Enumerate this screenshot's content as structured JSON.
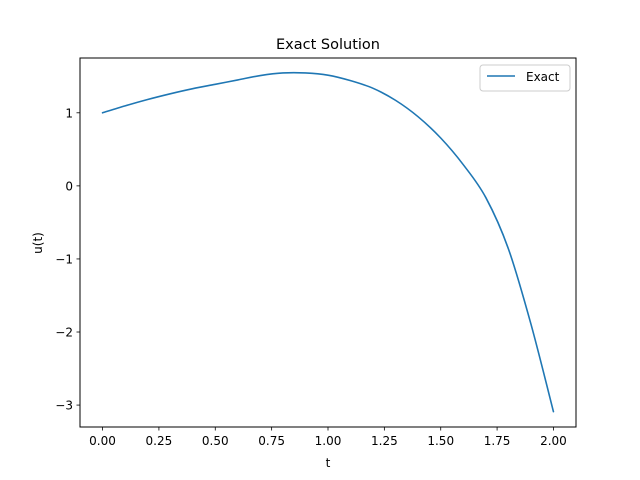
{
  "chart_data": {
    "type": "line",
    "title": "Exact Solution",
    "xlabel": "t",
    "ylabel": "u(t)",
    "xlim": [
      -0.1,
      2.1
    ],
    "ylim": [
      -3.3,
      1.75
    ],
    "xticks": [
      0,
      0.25,
      0.5,
      0.75,
      1.0,
      1.25,
      1.5,
      1.75,
      2.0
    ],
    "xtick_labels": [
      "0.00",
      "0.25",
      "0.50",
      "0.75",
      "1.00",
      "1.25",
      "1.50",
      "1.75",
      "2.00"
    ],
    "yticks": [
      -3,
      -2,
      -1,
      0,
      1
    ],
    "ytick_labels": [
      "−3",
      "−2",
      "−1",
      "0",
      "1"
    ],
    "grid": false,
    "legend_position": "top-right",
    "series": [
      {
        "name": "Exact",
        "color": "#1f77b4",
        "x": [
          0.0,
          0.1,
          0.2,
          0.3,
          0.4,
          0.5,
          0.6,
          0.7,
          0.8,
          0.9,
          1.0,
          1.1,
          1.2,
          1.3,
          1.4,
          1.5,
          1.6,
          1.7,
          1.8,
          1.9,
          2.0
        ],
        "y": [
          1.0,
          1.095,
          1.182,
          1.26,
          1.33,
          1.39,
          1.45,
          1.51,
          1.545,
          1.545,
          1.515,
          1.44,
          1.335,
          1.17,
          0.945,
          0.655,
          0.29,
          -0.16,
          -0.86,
          -1.89,
          -3.09
        ]
      }
    ]
  }
}
